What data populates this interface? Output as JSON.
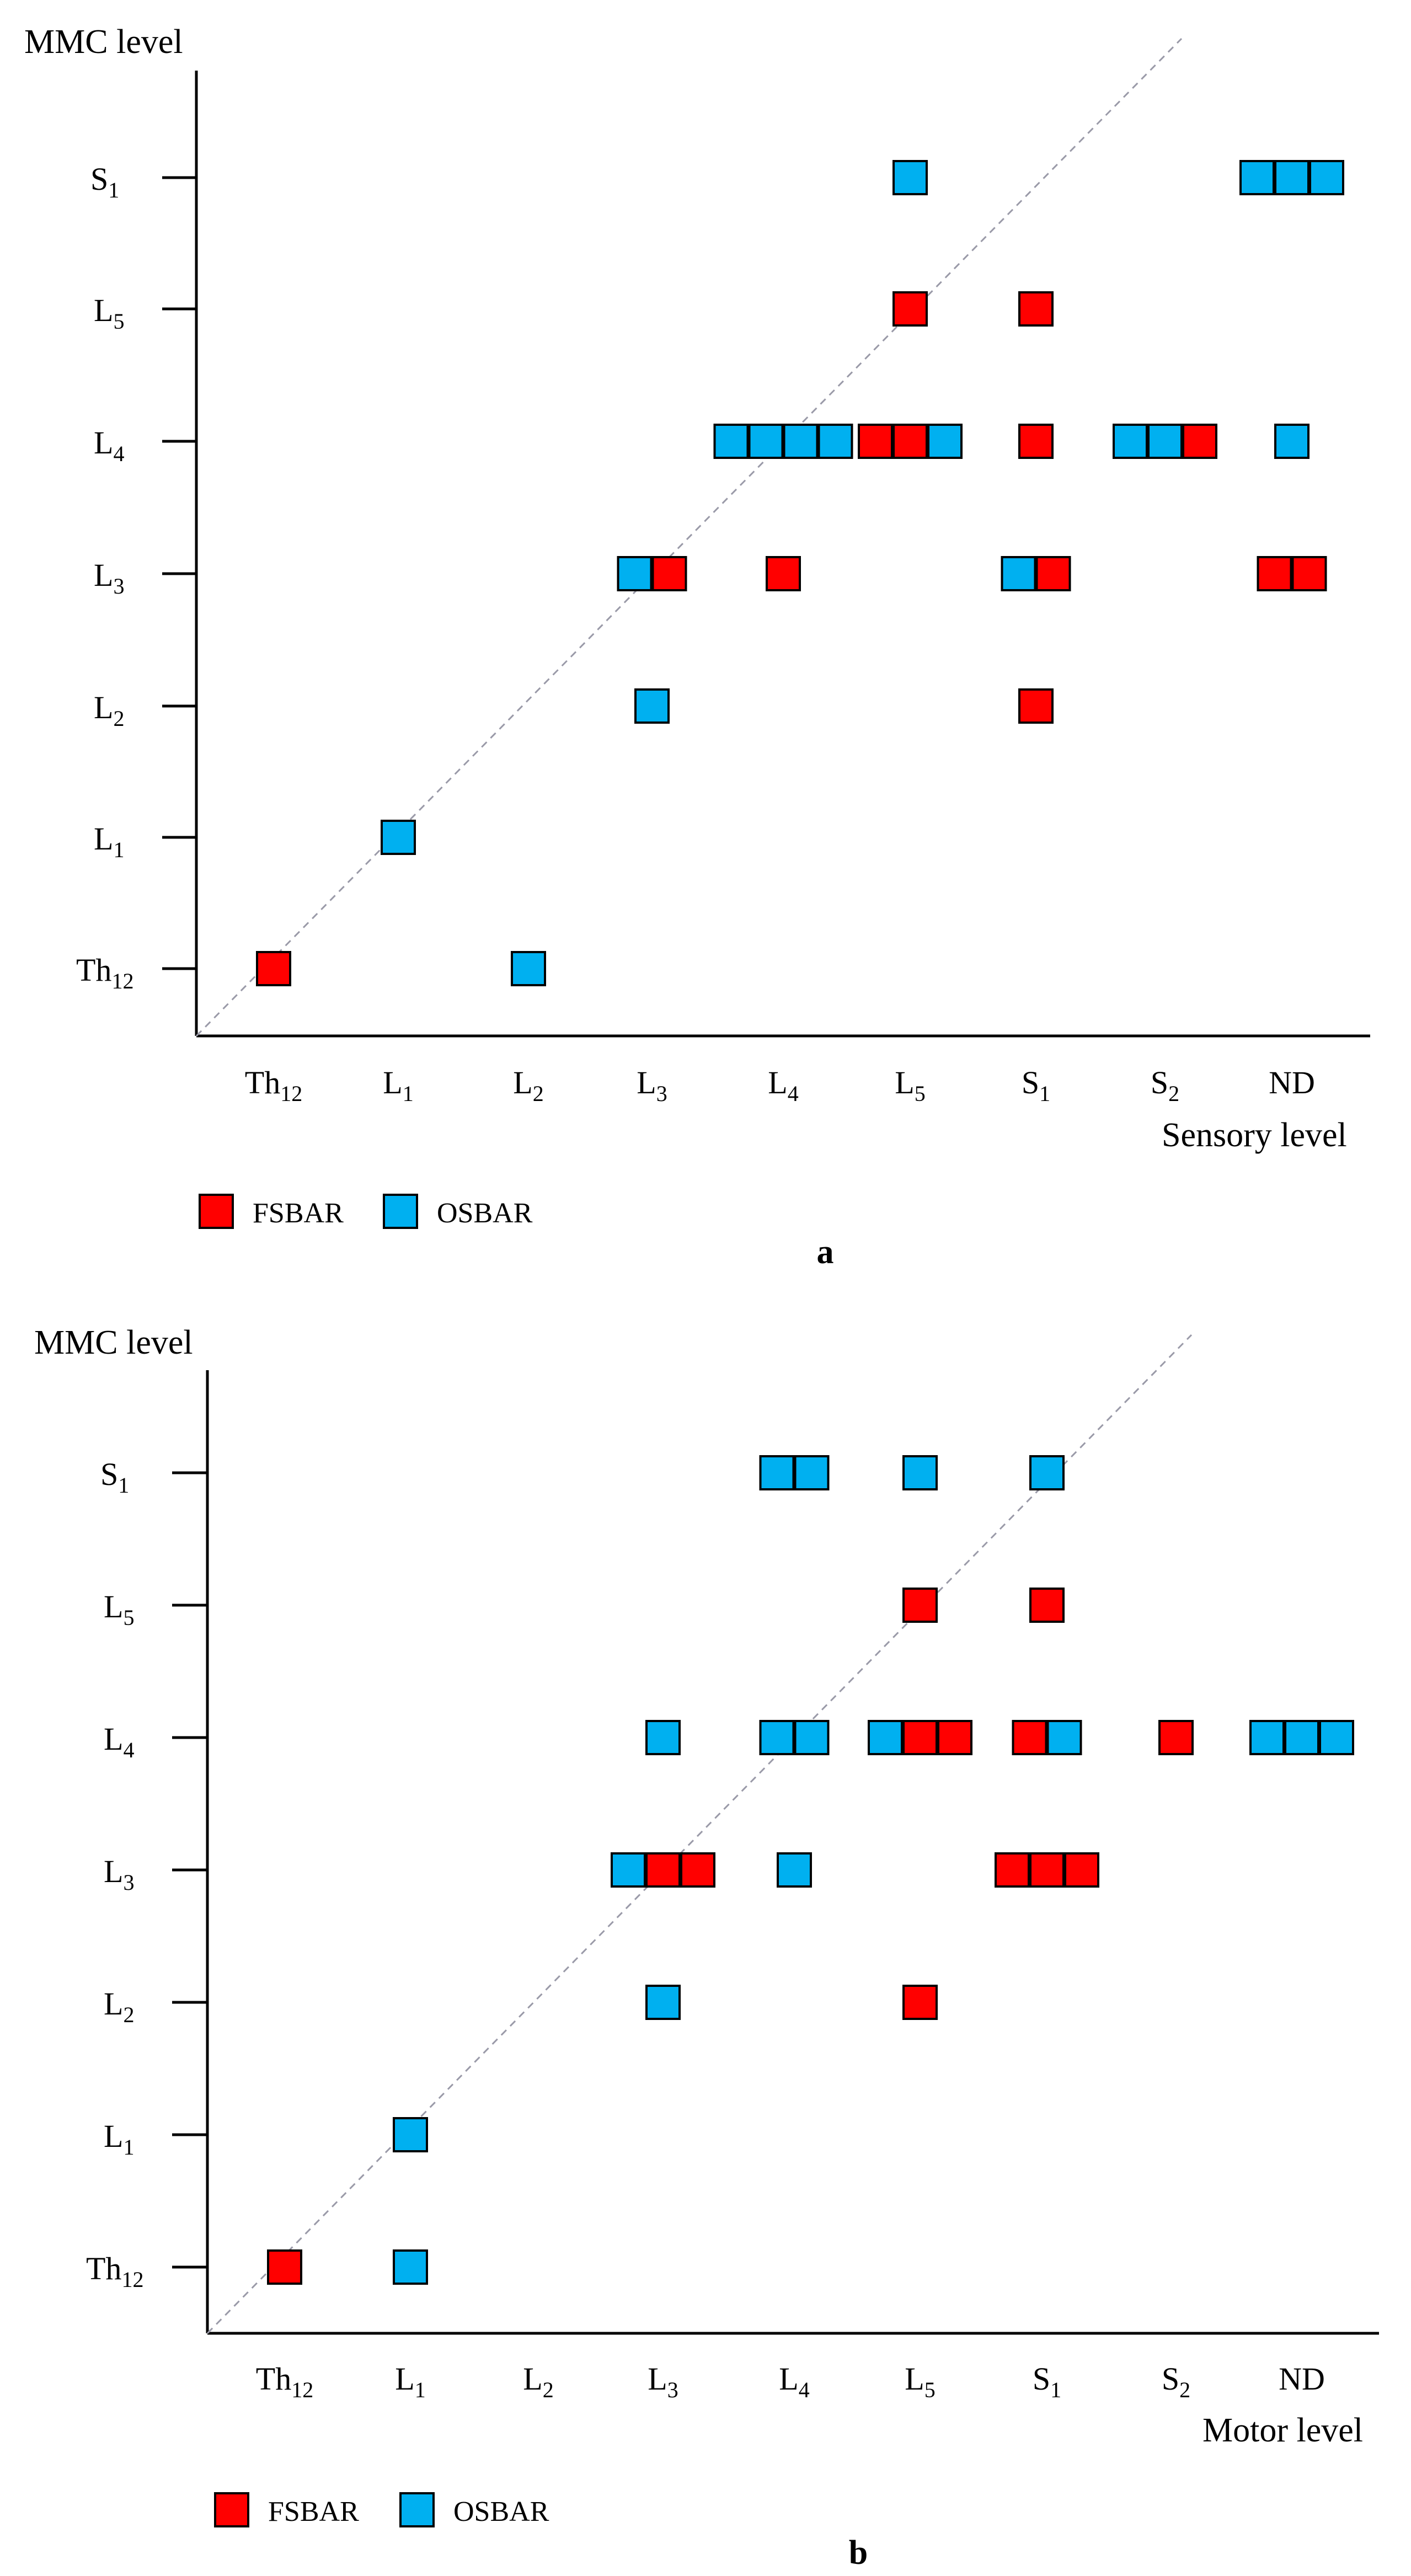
{
  "chart_data": [
    {
      "type": "scatter",
      "panel_label": "a",
      "ylabel": "MMC level",
      "xlabel": "Sensory level",
      "x_categories": [
        {
          "base": "Th",
          "sub": "12"
        },
        {
          "base": "L",
          "sub": "1"
        },
        {
          "base": "L",
          "sub": "2"
        },
        {
          "base": "L",
          "sub": "3"
        },
        {
          "base": "L",
          "sub": "4"
        },
        {
          "base": "L",
          "sub": "5"
        },
        {
          "base": "S",
          "sub": "1"
        },
        {
          "base": "S",
          "sub": "2"
        },
        {
          "base": "ND",
          "sub": ""
        }
      ],
      "y_categories": [
        {
          "base": "Th",
          "sub": "12"
        },
        {
          "base": "L",
          "sub": "1"
        },
        {
          "base": "L",
          "sub": "2"
        },
        {
          "base": "L",
          "sub": "3"
        },
        {
          "base": "L",
          "sub": "4"
        },
        {
          "base": "L",
          "sub": "5"
        },
        {
          "base": "S",
          "sub": "1"
        }
      ],
      "diagonal": "dashed identity line",
      "legend": [
        {
          "name": "FSBAR",
          "color": "#ff0000"
        },
        {
          "name": "OSBAR",
          "color": "#00b0f0"
        }
      ],
      "cells": [
        {
          "x": "Th12",
          "y": "Th12",
          "items": [
            "FSBAR"
          ]
        },
        {
          "x": "L1",
          "y": "L1",
          "items": [
            "OSBAR"
          ]
        },
        {
          "x": "L2",
          "y": "Th12",
          "items": [
            "OSBAR"
          ]
        },
        {
          "x": "L3",
          "y": "L2",
          "items": [
            "OSBAR"
          ]
        },
        {
          "x": "L3",
          "y": "L3",
          "items": [
            "OSBAR",
            "FSBAR"
          ]
        },
        {
          "x": "L4",
          "y": "L3",
          "items": [
            "FSBAR"
          ]
        },
        {
          "x": "L4",
          "y": "L4",
          "items": [
            "OSBAR",
            "OSBAR",
            "OSBAR",
            "OSBAR"
          ]
        },
        {
          "x": "L5",
          "y": "L4",
          "items": [
            "FSBAR",
            "FSBAR",
            "OSBAR"
          ]
        },
        {
          "x": "L5",
          "y": "L5",
          "items": [
            "FSBAR"
          ]
        },
        {
          "x": "L5",
          "y": "S1",
          "items": [
            "OSBAR"
          ]
        },
        {
          "x": "S1",
          "y": "L2",
          "items": [
            "FSBAR"
          ]
        },
        {
          "x": "S1",
          "y": "L3",
          "items": [
            "OSBAR",
            "FSBAR"
          ]
        },
        {
          "x": "S1",
          "y": "L4",
          "items": [
            "FSBAR"
          ]
        },
        {
          "x": "S1",
          "y": "L5",
          "items": [
            "FSBAR"
          ]
        },
        {
          "x": "S2",
          "y": "L4",
          "items": [
            "OSBAR",
            "OSBAR",
            "FSBAR"
          ]
        },
        {
          "x": "ND",
          "y": "L3",
          "items": [
            "FSBAR",
            "FSBAR"
          ]
        },
        {
          "x": "ND",
          "y": "L4",
          "items": [
            "OSBAR"
          ]
        },
        {
          "x": "ND",
          "y": "S1",
          "items": [
            "OSBAR",
            "OSBAR",
            "OSBAR"
          ]
        }
      ]
    },
    {
      "type": "scatter",
      "panel_label": "b",
      "ylabel": "MMC level",
      "xlabel": "Motor level",
      "x_categories": [
        {
          "base": "Th",
          "sub": "12"
        },
        {
          "base": "L",
          "sub": "1"
        },
        {
          "base": "L",
          "sub": "2"
        },
        {
          "base": "L",
          "sub": "3"
        },
        {
          "base": "L",
          "sub": "4"
        },
        {
          "base": "L",
          "sub": "5"
        },
        {
          "base": "S",
          "sub": "1"
        },
        {
          "base": "S",
          "sub": "2"
        },
        {
          "base": "ND",
          "sub": ""
        }
      ],
      "y_categories": [
        {
          "base": "Th",
          "sub": "12"
        },
        {
          "base": "L",
          "sub": "1"
        },
        {
          "base": "L",
          "sub": "2"
        },
        {
          "base": "L",
          "sub": "3"
        },
        {
          "base": "L",
          "sub": "4"
        },
        {
          "base": "L",
          "sub": "5"
        },
        {
          "base": "S",
          "sub": "1"
        }
      ],
      "diagonal": "dashed identity line",
      "legend": [
        {
          "name": "FSBAR",
          "color": "#ff0000"
        },
        {
          "name": "OSBAR",
          "color": "#00b0f0"
        }
      ],
      "cells": [
        {
          "x": "Th12",
          "y": "Th12",
          "items": [
            "FSBAR"
          ]
        },
        {
          "x": "L1",
          "y": "Th12",
          "items": [
            "OSBAR"
          ]
        },
        {
          "x": "L1",
          "y": "L1",
          "items": [
            "OSBAR"
          ]
        },
        {
          "x": "L3",
          "y": "L2",
          "items": [
            "OSBAR"
          ]
        },
        {
          "x": "L3",
          "y": "L3",
          "items": [
            "OSBAR",
            "FSBAR",
            "FSBAR"
          ]
        },
        {
          "x": "L3",
          "y": "L4",
          "items": [
            "OSBAR"
          ]
        },
        {
          "x": "L4",
          "y": "L3",
          "items": [
            "OSBAR"
          ]
        },
        {
          "x": "L4",
          "y": "L4",
          "items": [
            "OSBAR",
            "OSBAR"
          ]
        },
        {
          "x": "L4",
          "y": "S1",
          "items": [
            "OSBAR",
            "OSBAR"
          ]
        },
        {
          "x": "L5",
          "y": "L4",
          "items": [
            "OSBAR",
            "FSBAR",
            "FSBAR"
          ]
        },
        {
          "x": "L5",
          "y": "L2",
          "items": [
            "FSBAR"
          ]
        },
        {
          "x": "L5",
          "y": "L5",
          "items": [
            "FSBAR"
          ]
        },
        {
          "x": "L5",
          "y": "S1",
          "items": [
            "OSBAR"
          ]
        },
        {
          "x": "S1",
          "y": "L3",
          "items": [
            "FSBAR",
            "FSBAR",
            "FSBAR"
          ]
        },
        {
          "x": "S1",
          "y": "L4",
          "items": [
            "FSBAR",
            "OSBAR"
          ]
        },
        {
          "x": "S1",
          "y": "L5",
          "items": [
            "FSBAR"
          ]
        },
        {
          "x": "S1",
          "y": "S1",
          "items": [
            "OSBAR"
          ]
        },
        {
          "x": "S2",
          "y": "L4",
          "items": [
            "FSBAR"
          ]
        },
        {
          "x": "ND",
          "y": "L4",
          "items": [
            "OSBAR",
            "OSBAR",
            "OSBAR"
          ]
        }
      ]
    }
  ]
}
